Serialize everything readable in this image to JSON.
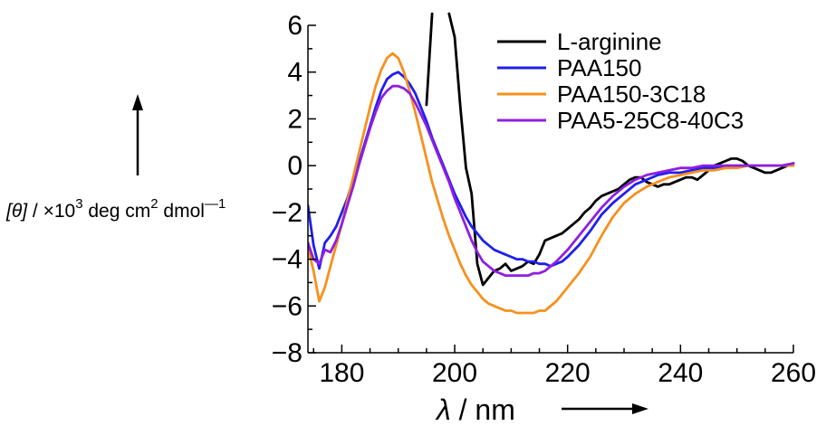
{
  "chart_data": {
    "type": "line",
    "title": "",
    "xlabel": {
      "symbol": "λ",
      "text": " / nm"
    },
    "ylabel": {
      "symbol": "[θ]",
      "prefix": " / ×10",
      "exponent": "3",
      "unit1": " deg cm",
      "exponent2": "2",
      "unit2": " dmol",
      "exponent3": "—1"
    },
    "xlim": [
      174,
      260
    ],
    "ylim": [
      -8,
      6
    ],
    "xticks": [
      "180",
      "200",
      "220",
      "240",
      "260"
    ],
    "yticks": [
      "6",
      "4",
      "2",
      "0",
      "−2",
      "−4",
      "−6",
      "−8"
    ],
    "legend_position": "top-right",
    "series": [
      {
        "name": "L-arginine",
        "color": "#000000",
        "x": [
          195,
          196,
          197,
          198,
          199,
          200,
          201,
          202,
          203,
          204,
          205,
          206,
          207,
          208,
          209,
          210,
          211,
          212,
          213,
          214,
          215,
          216,
          217,
          218,
          219,
          220,
          221,
          222,
          223,
          224,
          225,
          226,
          227,
          228,
          229,
          230,
          231,
          232,
          233,
          234,
          235,
          236,
          237,
          238,
          239,
          240,
          241,
          242,
          243,
          244,
          245,
          246,
          247,
          248,
          249,
          250,
          251,
          252,
          253,
          254,
          255,
          256,
          257,
          258,
          259,
          260
        ],
        "y": [
          2.6,
          6.5,
          null,
          null,
          6.5,
          5.5,
          2.5,
          -0.1,
          -1.2,
          -4.2,
          -5.1,
          -4.8,
          -4.5,
          -4.4,
          -4.2,
          -4.5,
          -4.4,
          -4.3,
          -4.1,
          -4.2,
          -3.8,
          -3.2,
          -3.1,
          -3.0,
          -2.9,
          -2.7,
          -2.5,
          -2.3,
          -2.0,
          -1.8,
          -1.5,
          -1.3,
          -1.2,
          -1.1,
          -1.0,
          -0.8,
          -0.6,
          -0.5,
          -0.5,
          -0.7,
          -0.8,
          -0.9,
          -0.8,
          -0.8,
          -0.7,
          -0.6,
          -0.5,
          -0.5,
          -0.6,
          -0.4,
          -0.2,
          0.0,
          0.1,
          0.2,
          0.3,
          0.3,
          0.2,
          0.0,
          -0.1,
          -0.2,
          -0.3,
          -0.3,
          -0.2,
          -0.1,
          0.0,
          0.1
        ]
      },
      {
        "name": "PAA150",
        "color": "#1f1fef",
        "x": [
          174,
          175,
          176,
          177,
          178,
          179,
          180,
          181,
          182,
          183,
          184,
          185,
          186,
          187,
          188,
          189,
          190,
          191,
          192,
          193,
          194,
          195,
          196,
          197,
          198,
          199,
          200,
          201,
          202,
          203,
          204,
          205,
          206,
          207,
          208,
          209,
          210,
          211,
          212,
          213,
          214,
          215,
          216,
          217,
          218,
          219,
          220,
          222,
          224,
          226,
          228,
          230,
          232,
          234,
          236,
          238,
          240,
          242,
          244,
          246,
          248,
          250,
          252,
          254,
          256,
          258,
          260
        ],
        "y": [
          -1.7,
          -3.4,
          -4.4,
          -3.3,
          -3.0,
          -2.6,
          -2.0,
          -1.4,
          -0.6,
          0.1,
          0.9,
          1.7,
          2.5,
          3.2,
          3.7,
          3.9,
          4.0,
          3.8,
          3.5,
          3.1,
          2.5,
          1.9,
          1.2,
          0.6,
          0.0,
          -0.6,
          -1.2,
          -1.7,
          -2.2,
          -2.6,
          -2.9,
          -3.2,
          -3.4,
          -3.6,
          -3.7,
          -3.8,
          -3.9,
          -4.0,
          -4.0,
          -4.1,
          -4.1,
          -4.2,
          -4.2,
          -4.3,
          -4.2,
          -4.1,
          -3.9,
          -3.4,
          -2.8,
          -2.1,
          -1.6,
          -1.2,
          -0.8,
          -0.6,
          -0.4,
          -0.3,
          -0.3,
          -0.2,
          -0.1,
          -0.1,
          0.0,
          0.0,
          0.0,
          0.0,
          0.0,
          0.0,
          0.1
        ]
      },
      {
        "name": "PAA150-3C18",
        "color": "#f7901e",
        "x": [
          174,
          175,
          176,
          177,
          178,
          179,
          180,
          181,
          182,
          183,
          184,
          185,
          186,
          187,
          188,
          189,
          190,
          191,
          192,
          193,
          194,
          195,
          196,
          197,
          198,
          199,
          200,
          201,
          202,
          203,
          204,
          205,
          206,
          207,
          208,
          209,
          210,
          211,
          212,
          213,
          214,
          215,
          216,
          218,
          220,
          222,
          224,
          226,
          228,
          230,
          232,
          234,
          236,
          238,
          240,
          242,
          244,
          246,
          248,
          250,
          252,
          254,
          256,
          258,
          260
        ],
        "y": [
          -3.5,
          -4.5,
          -5.8,
          -5.2,
          -4.3,
          -3.4,
          -2.5,
          -1.5,
          -0.5,
          0.5,
          1.5,
          2.5,
          3.4,
          4.1,
          4.6,
          4.8,
          4.6,
          4.0,
          3.2,
          2.3,
          1.3,
          0.3,
          -0.7,
          -1.5,
          -2.3,
          -3.0,
          -3.6,
          -4.2,
          -4.7,
          -5.1,
          -5.4,
          -5.7,
          -5.9,
          -6.0,
          -6.1,
          -6.2,
          -6.2,
          -6.3,
          -6.3,
          -6.3,
          -6.3,
          -6.2,
          -6.2,
          -5.8,
          -5.2,
          -4.6,
          -3.9,
          -3.0,
          -2.2,
          -1.6,
          -1.2,
          -0.9,
          -0.7,
          -0.5,
          -0.4,
          -0.3,
          -0.2,
          -0.2,
          -0.1,
          -0.1,
          0.0,
          0.0,
          0.0,
          0.0,
          0.0
        ]
      },
      {
        "name": "PAA5-25C8-40C3",
        "color": "#8f1fe0",
        "x": [
          174,
          175,
          176,
          177,
          178,
          179,
          180,
          181,
          182,
          183,
          184,
          185,
          186,
          187,
          188,
          189,
          190,
          191,
          192,
          193,
          194,
          195,
          196,
          197,
          198,
          199,
          200,
          201,
          202,
          203,
          204,
          205,
          206,
          207,
          208,
          209,
          210,
          211,
          212,
          213,
          214,
          215,
          216,
          218,
          220,
          222,
          224,
          226,
          228,
          230,
          232,
          234,
          236,
          238,
          240,
          242,
          244,
          246,
          248,
          250,
          252,
          254,
          256,
          258,
          260
        ],
        "y": [
          -3.3,
          -4.0,
          -4.2,
          -3.6,
          -3.7,
          -3.2,
          -2.5,
          -1.7,
          -0.9,
          0.0,
          0.8,
          1.6,
          2.3,
          2.9,
          3.2,
          3.4,
          3.4,
          3.3,
          3.1,
          2.7,
          2.2,
          1.7,
          1.1,
          0.5,
          -0.1,
          -0.7,
          -1.4,
          -2.0,
          -2.6,
          -3.2,
          -3.7,
          -4.1,
          -4.3,
          -4.5,
          -4.6,
          -4.7,
          -4.7,
          -4.7,
          -4.7,
          -4.7,
          -4.6,
          -4.6,
          -4.5,
          -4.1,
          -3.6,
          -3.0,
          -2.4,
          -1.8,
          -1.3,
          -0.9,
          -0.6,
          -0.4,
          -0.3,
          -0.2,
          -0.1,
          -0.1,
          0.0,
          0.0,
          0.0,
          0.0,
          0.0,
          0.0,
          0.0,
          0.0,
          0.1
        ]
      }
    ]
  }
}
